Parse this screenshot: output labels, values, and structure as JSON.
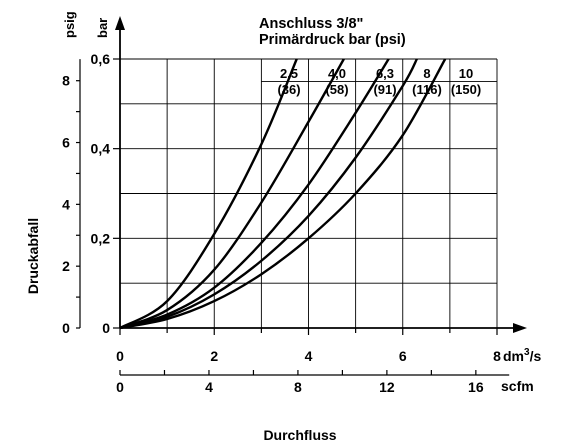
{
  "chart_data": {
    "type": "line",
    "title": "Anschluss 3/8\"",
    "subtitle": "Primärdruck bar (psi)",
    "xlabel": "Durchfluss",
    "ylabel": "Druckabfall",
    "x_unit_primary": "dm³/s",
    "x_unit_primary_base": "dm",
    "x_unit_primary_exp": "3",
    "x_unit_primary_tail": "/s",
    "x_unit_secondary": "scfm",
    "y_unit_primary": "bar",
    "y_unit_secondary": "psig",
    "x_ticks_dm3s": [
      "0",
      "2",
      "4",
      "6",
      "8"
    ],
    "x_ticks_scfm": [
      "0",
      "4",
      "8",
      "12",
      "16"
    ],
    "y_ticks_bar": [
      "0",
      "0,2",
      "0,4",
      "0,6"
    ],
    "y_ticks_psig": [
      "0",
      "2",
      "4",
      "6",
      "8"
    ],
    "xlim": [
      0,
      8
    ],
    "ylim": [
      0,
      0.6
    ],
    "grid": true,
    "series": [
      {
        "name": "2,5 (36)",
        "label_top": "2,5",
        "label_bottom": "(36)",
        "x": [
          0,
          1,
          2,
          3,
          3.75
        ],
        "y": [
          0,
          0.06,
          0.21,
          0.41,
          0.6
        ]
      },
      {
        "name": "4,0 (58)",
        "label_top": "4,0",
        "label_bottom": "(58)",
        "x": [
          0,
          1,
          2,
          3,
          4,
          4.75
        ],
        "y": [
          0,
          0.04,
          0.13,
          0.28,
          0.46,
          0.6
        ]
      },
      {
        "name": "6,3 (91)",
        "label_top": "6,3",
        "label_bottom": "(91)",
        "x": [
          0,
          1,
          2,
          3,
          4,
          5,
          5.7
        ],
        "y": [
          0,
          0.03,
          0.09,
          0.19,
          0.32,
          0.48,
          0.6
        ]
      },
      {
        "name": "8 (116)",
        "label_top": "8",
        "label_bottom": "(116)",
        "x": [
          0,
          1,
          2,
          3,
          4,
          5,
          6,
          6.3
        ],
        "y": [
          0,
          0.025,
          0.075,
          0.15,
          0.25,
          0.38,
          0.54,
          0.6
        ]
      },
      {
        "name": "10 (150)",
        "label_top": "10",
        "label_bottom": "(150)",
        "x": [
          0,
          1,
          2,
          3,
          4,
          5,
          6,
          6.9
        ],
        "y": [
          0,
          0.02,
          0.06,
          0.12,
          0.2,
          0.3,
          0.43,
          0.6
        ]
      }
    ]
  }
}
